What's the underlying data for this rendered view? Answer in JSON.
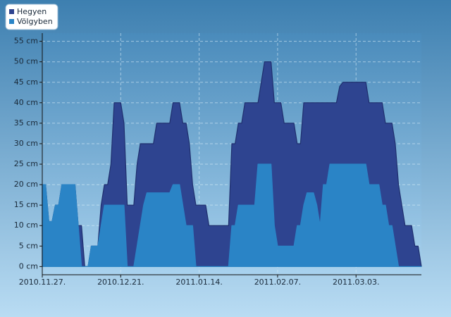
{
  "chart_data": {
    "type": "area",
    "x": [
      "2010-11-27",
      "2010-11-28",
      "2010-11-29",
      "2010-11-30",
      "2010-12-01",
      "2010-12-02",
      "2010-12-03",
      "2010-12-07",
      "2010-12-08",
      "2010-12-09",
      "2010-12-10",
      "2010-12-11",
      "2010-12-12",
      "2010-12-14",
      "2010-12-15",
      "2010-12-16",
      "2010-12-17",
      "2010-12-18",
      "2010-12-19",
      "2010-12-21",
      "2010-12-22",
      "2010-12-23",
      "2010-12-25",
      "2010-12-26",
      "2010-12-27",
      "2010-12-28",
      "2010-12-29",
      "2010-12-31",
      "2011-01-01",
      "2011-01-05",
      "2011-01-06",
      "2011-01-08",
      "2011-01-09",
      "2011-01-10",
      "2011-01-11",
      "2011-01-12",
      "2011-01-13",
      "2011-01-16",
      "2011-01-17",
      "2011-01-23",
      "2011-01-24",
      "2011-01-25",
      "2011-01-26",
      "2011-01-27",
      "2011-01-28",
      "2011-01-31",
      "2011-02-01",
      "2011-02-02",
      "2011-02-03",
      "2011-02-05",
      "2011-02-06",
      "2011-02-07",
      "2011-02-08",
      "2011-02-09",
      "2011-02-12",
      "2011-02-13",
      "2011-02-14",
      "2011-02-15",
      "2011-02-16",
      "2011-02-18",
      "2011-02-19",
      "2011-02-20",
      "2011-02-21",
      "2011-02-22",
      "2011-02-23",
      "2011-02-25",
      "2011-02-26",
      "2011-02-27",
      "2011-03-06",
      "2011-03-07",
      "2011-03-10",
      "2011-03-11",
      "2011-03-12",
      "2011-03-13",
      "2011-03-14",
      "2011-03-15",
      "2011-03-16",
      "2011-03-17",
      "2011-03-18",
      "2011-03-20",
      "2011-03-21",
      "2011-03-22",
      "2011-03-23"
    ],
    "series": [
      {
        "name": "Hegyen",
        "color": "#2e4490",
        "values": [
          20,
          20,
          11,
          11,
          15,
          15,
          20,
          20,
          10,
          10,
          0,
          0,
          5,
          5,
          15,
          20,
          20,
          25,
          40,
          40,
          35,
          15,
          15,
          25,
          30,
          30,
          30,
          30,
          35,
          35,
          40,
          40,
          35,
          35,
          30,
          20,
          15,
          15,
          10,
          10,
          30,
          30,
          35,
          35,
          40,
          40,
          40,
          45,
          50,
          50,
          40,
          40,
          40,
          35,
          35,
          30,
          30,
          40,
          40,
          40,
          40,
          40,
          40,
          40,
          40,
          40,
          44,
          45,
          45,
          40,
          40,
          40,
          35,
          35,
          35,
          30,
          20,
          15,
          10,
          10,
          5,
          5,
          0
        ]
      },
      {
        "name": "Völgyben",
        "color": "#2a84c6",
        "values": [
          20,
          20,
          11,
          11,
          15,
          15,
          20,
          20,
          10,
          0,
          0,
          0,
          5,
          5,
          10,
          15,
          15,
          15,
          15,
          15,
          15,
          0,
          0,
          5,
          10,
          15,
          18,
          18,
          18,
          18,
          20,
          20,
          15,
          10,
          10,
          10,
          0,
          0,
          0,
          0,
          10,
          10,
          15,
          15,
          15,
          15,
          25,
          25,
          25,
          25,
          10,
          5,
          5,
          5,
          5,
          10,
          10,
          15,
          18,
          18,
          15,
          10,
          20,
          20,
          25,
          25,
          25,
          25,
          25,
          20,
          20,
          15,
          15,
          10,
          10,
          5,
          0,
          0,
          0,
          0,
          0,
          0,
          0
        ]
      }
    ],
    "xlim": [
      "2010-11-27",
      "2011-03-23"
    ],
    "xticks": [
      {
        "value": "2010-11-27",
        "label": "2010.11.27."
      },
      {
        "value": "2010-12-21",
        "label": "2010.12.21."
      },
      {
        "value": "2011-01-14",
        "label": "2011.01.14."
      },
      {
        "value": "2011-02-07",
        "label": "2011.02.07."
      },
      {
        "value": "2011-03-03",
        "label": "2011.03.03."
      }
    ],
    "ylim": [
      -2,
      57
    ],
    "yticks": [
      {
        "value": 0,
        "label": "0 cm"
      },
      {
        "value": 5,
        "label": "5 cm"
      },
      {
        "value": 10,
        "label": "10 cm"
      },
      {
        "value": 15,
        "label": "15 cm"
      },
      {
        "value": 20,
        "label": "20 cm"
      },
      {
        "value": 25,
        "label": "25 cm"
      },
      {
        "value": 30,
        "label": "30 cm"
      },
      {
        "value": 35,
        "label": "35 cm"
      },
      {
        "value": 40,
        "label": "40 cm"
      },
      {
        "value": 45,
        "label": "45 cm"
      },
      {
        "value": 50,
        "label": "50 cm"
      },
      {
        "value": 55,
        "label": "55 cm"
      }
    ],
    "grid": true,
    "legend": "top-left"
  }
}
